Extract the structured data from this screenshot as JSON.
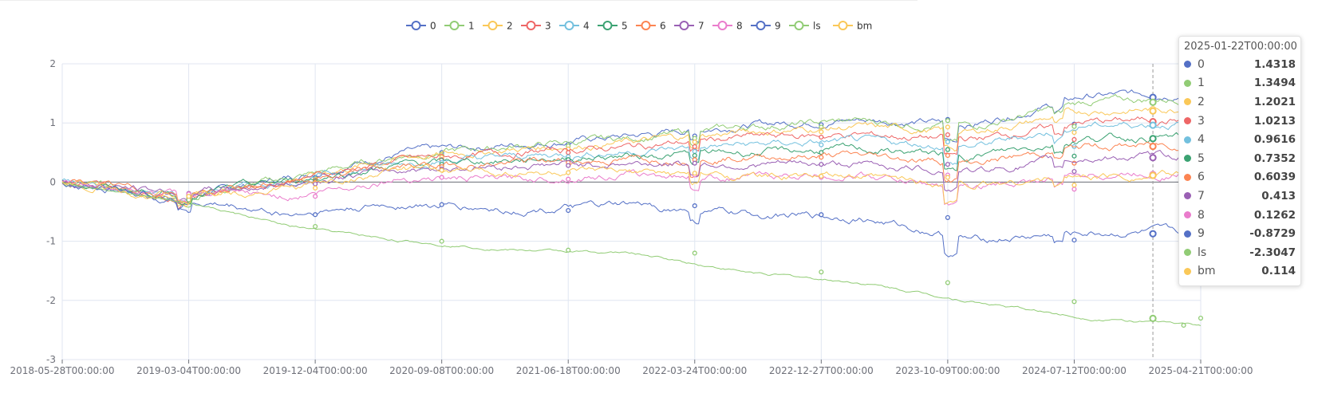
{
  "chart_data": {
    "type": "line",
    "ylim": [
      -3,
      2
    ],
    "yticks": [
      2,
      1,
      0,
      -1,
      -2,
      -3
    ],
    "x_labels": [
      "2018-05-28T00:00:00",
      "2019-03-04T00:00:00",
      "2019-12-04T00:00:00",
      "2020-09-08T00:00:00",
      "2021-06-18T00:00:00",
      "2022-03-24T00:00:00",
      "2022-12-27T00:00:00",
      "2023-10-09T00:00:00",
      "2024-07-12T00:00:00",
      "2025-04-21T00:00:00"
    ],
    "grid": true,
    "legend_position": "top-center",
    "series": [
      {
        "name": "0",
        "color": "#5470c6",
        "values": [
          0,
          -0.28,
          0.08,
          0.5,
          0.64,
          0.78,
          0.97,
          1.06,
          0.98,
          1.45,
          1.52
        ]
      },
      {
        "name": "1",
        "color": "#91cc75",
        "values": [
          0,
          -0.26,
          0.06,
          0.46,
          0.61,
          0.74,
          0.93,
          1.04,
          0.94,
          1.36,
          1.42
        ]
      },
      {
        "name": "2",
        "color": "#fac858",
        "values": [
          0,
          -0.25,
          0.05,
          0.42,
          0.56,
          0.68,
          0.85,
          0.93,
          0.84,
          1.2,
          1.25
        ]
      },
      {
        "name": "3",
        "color": "#ee6666",
        "values": [
          0,
          -0.24,
          0.03,
          0.38,
          0.5,
          0.6,
          0.76,
          0.8,
          0.72,
          1.02,
          1.07
        ]
      },
      {
        "name": "4",
        "color": "#73c0de",
        "values": [
          0,
          -0.23,
          0.02,
          0.33,
          0.43,
          0.52,
          0.63,
          0.68,
          0.6,
          0.96,
          1.0
        ]
      },
      {
        "name": "5",
        "color": "#3ba272",
        "values": [
          0,
          -0.22,
          0.01,
          0.3,
          0.38,
          0.45,
          0.5,
          0.55,
          0.44,
          0.74,
          0.77
        ]
      },
      {
        "name": "6",
        "color": "#fc8452",
        "values": [
          0,
          -0.2,
          -0.01,
          0.26,
          0.33,
          0.38,
          0.42,
          0.45,
          0.32,
          0.6,
          0.63
        ]
      },
      {
        "name": "7",
        "color": "#9a60b4",
        "values": [
          0,
          -0.19,
          -0.03,
          0.22,
          0.28,
          0.32,
          0.3,
          0.3,
          0.18,
          0.41,
          0.44
        ]
      },
      {
        "name": "8",
        "color": "#ea7ccc",
        "values": [
          0,
          -0.2,
          -0.24,
          0.08,
          0.05,
          0.12,
          0.08,
          0.12,
          -0.12,
          0.13,
          0.15
        ]
      },
      {
        "name": "9",
        "color": "#5470c6",
        "values": [
          0,
          -0.3,
          -0.55,
          -0.38,
          -0.48,
          -0.4,
          -0.55,
          -0.6,
          -0.98,
          -0.87,
          -0.85
        ]
      },
      {
        "name": "ls",
        "color": "#91cc75",
        "values": [
          0,
          -0.3,
          -0.75,
          -1.0,
          -1.15,
          -1.2,
          -1.52,
          -1.7,
          -2.02,
          -2.3,
          -2.42
        ]
      },
      {
        "name": "bm",
        "color": "#fac858",
        "values": [
          0,
          -0.24,
          -0.1,
          0.2,
          0.16,
          0.15,
          0.1,
          0.08,
          -0.05,
          0.11,
          0.12
        ]
      }
    ],
    "tooltip": {
      "title": "2025-01-22T00:00:00",
      "rows": [
        {
          "name": "0",
          "value": "1.4318",
          "color": "#5470c6"
        },
        {
          "name": "1",
          "value": "1.3494",
          "color": "#91cc75"
        },
        {
          "name": "2",
          "value": "1.2021",
          "color": "#fac858"
        },
        {
          "name": "3",
          "value": "1.0213",
          "color": "#ee6666"
        },
        {
          "name": "4",
          "value": "0.9616",
          "color": "#73c0de"
        },
        {
          "name": "5",
          "value": "0.7352",
          "color": "#3ba272"
        },
        {
          "name": "6",
          "value": "0.6039",
          "color": "#fc8452"
        },
        {
          "name": "7",
          "value": "0.413",
          "color": "#9a60b4"
        },
        {
          "name": "8",
          "value": "0.1262",
          "color": "#ea7ccc"
        },
        {
          "name": "9",
          "value": "-0.8729",
          "color": "#5470c6"
        },
        {
          "name": "ls",
          "value": "-2.3047",
          "color": "#91cc75"
        },
        {
          "name": "bm",
          "value": "0.114",
          "color": "#fac858"
        }
      ]
    }
  }
}
